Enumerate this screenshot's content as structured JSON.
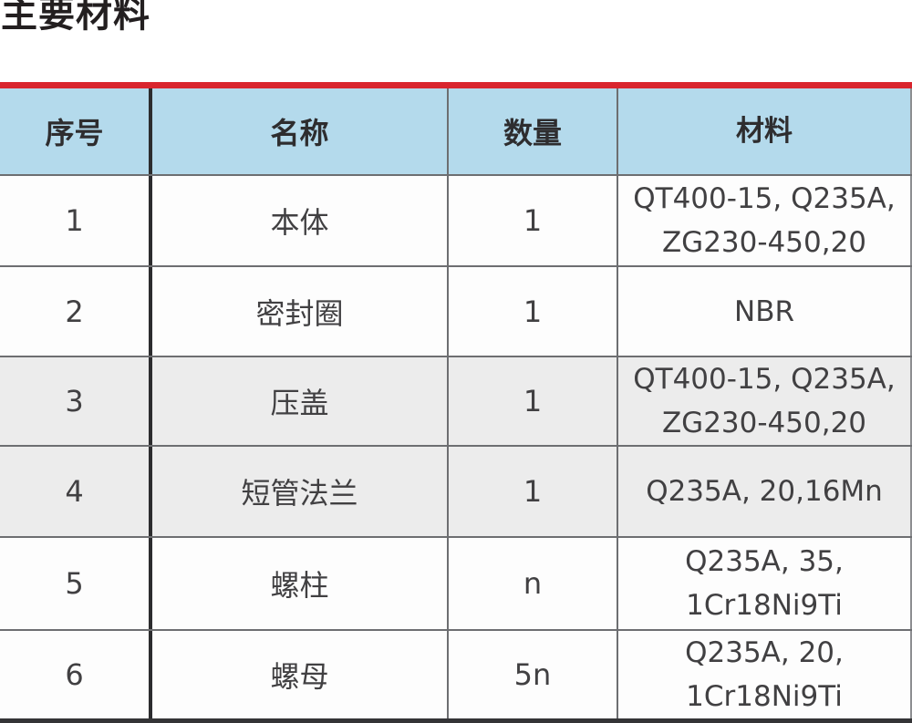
{
  "page": {
    "title": "主要材料"
  },
  "colors": {
    "accent_red": "#d9252e",
    "header_blue": "#b4daec",
    "row_shaded_gray": "#ececec",
    "border_thin_gray": "#6d6e71",
    "border_thick_dark": "#2c2c2e",
    "border_bottom_dark": "#343436",
    "text_dark": "#414042"
  },
  "table": {
    "columns": [
      {
        "key": "index",
        "label": "序号"
      },
      {
        "key": "name",
        "label": "名称"
      },
      {
        "key": "qty",
        "label": "数量"
      },
      {
        "key": "material",
        "label": "材料"
      }
    ],
    "rows": [
      {
        "index": "1",
        "name": "本体",
        "qty": "1",
        "material": "QT400-15, Q235A,\nZG230-450,20",
        "shaded": false
      },
      {
        "index": "2",
        "name": "密封圈",
        "qty": "1",
        "material": "NBR",
        "shaded": false
      },
      {
        "index": "3",
        "name": "压盖",
        "qty": "1",
        "material": "QT400-15, Q235A,\nZG230-450,20",
        "shaded": true
      },
      {
        "index": "4",
        "name": "短管法兰",
        "qty": "1",
        "material": "Q235A, 20,16Mn",
        "shaded": true
      },
      {
        "index": "5",
        "name": "螺柱",
        "qty": "n",
        "material": "Q235A, 35,\n1Cr18Ni9Ti",
        "shaded": false
      },
      {
        "index": "6",
        "name": "螺母",
        "qty": "5n",
        "material": "Q235A, 20,\n1Cr18Ni9Ti",
        "shaded": false
      }
    ]
  }
}
